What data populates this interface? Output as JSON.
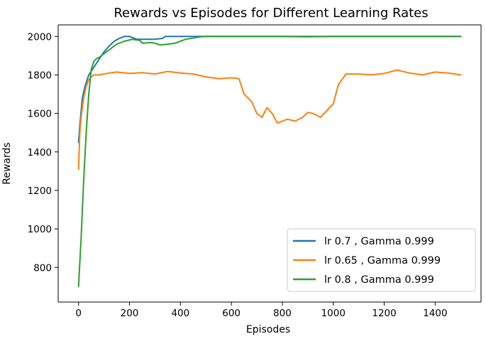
{
  "chart_data": {
    "type": "line",
    "title": "Rewards vs Episodes for Different Learning Rates",
    "xlabel": "Episodes",
    "ylabel": "Rewards",
    "xlim": [
      -80,
      1580
    ],
    "ylim": [
      620,
      2060
    ],
    "xticks": [
      0,
      200,
      400,
      600,
      800,
      1000,
      1200,
      1400
    ],
    "yticks": [
      800,
      1000,
      1200,
      1400,
      1600,
      1800,
      2000
    ],
    "grid": false,
    "legend_position": "lower-right",
    "series": [
      {
        "name": "lr 0.7 , Gamma 0.999",
        "color": "#1f77b4",
        "x": [
          0,
          5,
          15,
          25,
          40,
          60,
          80,
          100,
          120,
          140,
          160,
          180,
          200,
          230,
          250,
          270,
          300,
          330,
          340,
          400,
          500,
          600,
          700,
          800,
          900,
          1000,
          1100,
          1200,
          1300,
          1400,
          1500
        ],
        "y": [
          1450,
          1540,
          1680,
          1740,
          1800,
          1840,
          1880,
          1920,
          1950,
          1975,
          1990,
          2000,
          2000,
          1985,
          1985,
          1985,
          1985,
          1990,
          2000,
          2000,
          2000,
          2000,
          2000,
          2000,
          2000,
          2000,
          2000,
          2000,
          2000,
          2000,
          2000
        ]
      },
      {
        "name": "lr 0.65 , Gamma 0.999",
        "color": "#ff7f0e",
        "x": [
          0,
          5,
          10,
          20,
          30,
          40,
          50,
          60,
          80,
          100,
          120,
          150,
          200,
          250,
          300,
          350,
          400,
          450,
          500,
          550,
          600,
          630,
          650,
          680,
          700,
          720,
          740,
          760,
          780,
          800,
          820,
          850,
          880,
          900,
          920,
          950,
          1000,
          1020,
          1050,
          1100,
          1150,
          1200,
          1250,
          1300,
          1350,
          1400,
          1450,
          1500
        ],
        "y": [
          1310,
          1500,
          1580,
          1680,
          1740,
          1775,
          1790,
          1800,
          1800,
          1805,
          1810,
          1815,
          1808,
          1812,
          1805,
          1818,
          1810,
          1805,
          1790,
          1780,
          1785,
          1780,
          1700,
          1660,
          1600,
          1580,
          1630,
          1600,
          1550,
          1560,
          1570,
          1560,
          1580,
          1605,
          1600,
          1580,
          1650,
          1750,
          1805,
          1805,
          1800,
          1808,
          1825,
          1810,
          1800,
          1815,
          1810,
          1800
        ]
      },
      {
        "name": "lr 0.8 , Gamma 0.999",
        "color": "#2ca02c",
        "x": [
          0,
          10,
          20,
          30,
          40,
          50,
          60,
          70,
          80,
          100,
          120,
          150,
          180,
          210,
          240,
          250,
          280,
          300,
          320,
          350,
          380,
          420,
          480,
          500,
          600,
          700,
          800,
          900,
          1000,
          1100,
          1200,
          1300,
          1400,
          1500
        ],
        "y": [
          700,
          950,
          1250,
          1500,
          1700,
          1830,
          1870,
          1885,
          1890,
          1910,
          1930,
          1960,
          1975,
          1985,
          1980,
          1965,
          1968,
          1965,
          1955,
          1960,
          1965,
          1985,
          1998,
          2000,
          2000,
          2000,
          2000,
          1998,
          2000,
          2000,
          2000,
          2000,
          2000,
          2000
        ]
      }
    ]
  }
}
